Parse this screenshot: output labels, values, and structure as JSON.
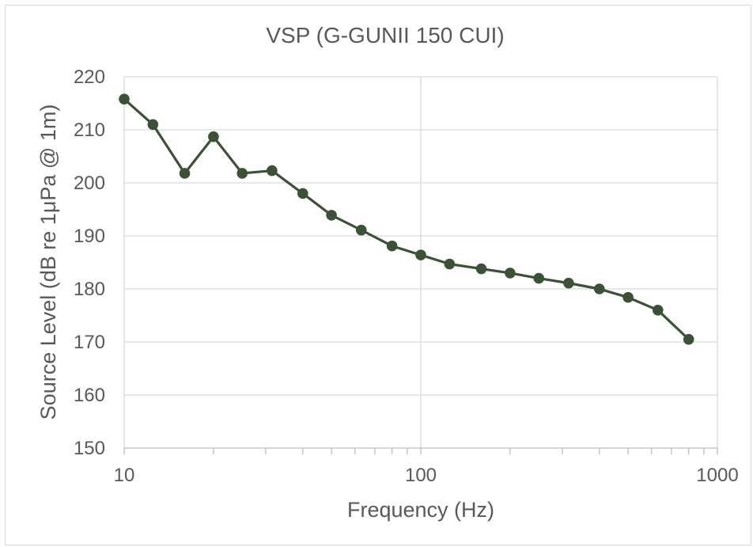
{
  "chart_data": {
    "type": "line",
    "title": "VSP (G-GUNII 150 CUI)",
    "xlabel": "Frequency (Hz)",
    "ylabel": "Source Level (dB re 1μPa @ 1m)",
    "xscale": "log",
    "xlim": [
      10,
      1000
    ],
    "ylim": [
      150,
      220
    ],
    "x_ticks": [
      10,
      100,
      1000
    ],
    "y_ticks": [
      150,
      160,
      170,
      180,
      190,
      200,
      210,
      220
    ],
    "grid": true,
    "legend": "none",
    "series": [
      {
        "color": "#3c5236",
        "marker": "circle",
        "points": [
          [
            10,
            215.8
          ],
          [
            12.5,
            211.0
          ],
          [
            16,
            201.8
          ],
          [
            20,
            208.7
          ],
          [
            25,
            201.8
          ],
          [
            31.5,
            202.3
          ],
          [
            40,
            198.0
          ],
          [
            50,
            193.9
          ],
          [
            63,
            191.1
          ],
          [
            80,
            188.1
          ],
          [
            100,
            186.4
          ],
          [
            125,
            184.7
          ],
          [
            160,
            183.8
          ],
          [
            200,
            183.0
          ],
          [
            250,
            182.0
          ],
          [
            315,
            181.1
          ],
          [
            400,
            180.0
          ],
          [
            500,
            178.4
          ],
          [
            630,
            176.0
          ],
          [
            800,
            170.5
          ]
        ]
      }
    ]
  }
}
